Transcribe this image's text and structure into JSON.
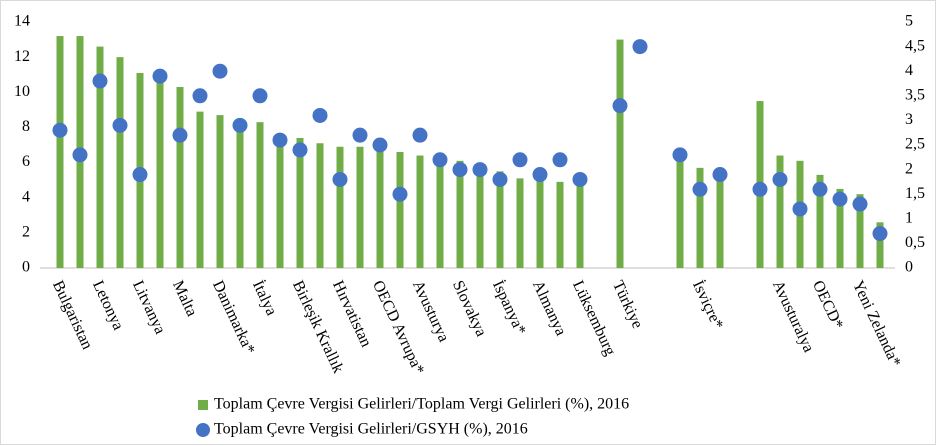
{
  "chart_data": {
    "type": "bar",
    "categories": [
      "Bulgaristan",
      null,
      "Letonya",
      null,
      "Litvanya",
      null,
      "Malta",
      null,
      "Danimarka*",
      null,
      "İtalya",
      null,
      "Birleşik Krallık",
      null,
      "Hırvatistan",
      null,
      "OECD Avrupa*",
      null,
      "Avusturya",
      null,
      "Slovakya",
      null,
      "İspanya*",
      null,
      "Almanya",
      null,
      "Lüksemburg",
      null,
      "Türkiye",
      null,
      null,
      null,
      "İsviçre*",
      null,
      null,
      null,
      "Avusturalya",
      null,
      "OECD*",
      null,
      "Yeni Zelanda*",
      null
    ],
    "series": [
      {
        "name": "Toplam Çevre Vergisi Gelirleri/Toplam Vergi Gelirleri (%), 2016",
        "color": "#70ad47",
        "values": [
          13.2,
          13.2,
          12.6,
          12.0,
          11.1,
          11.0,
          10.3,
          8.9,
          8.7,
          8.1,
          8.3,
          7.1,
          7.4,
          7.1,
          6.9,
          6.9,
          6.8,
          6.6,
          6.4,
          6.3,
          6.1,
          5.7,
          5.5,
          5.1,
          5.1,
          4.9,
          4.8,
          null,
          13.0,
          null,
          null,
          6.3,
          5.7,
          5.5,
          null,
          9.5,
          6.4,
          6.1,
          5.3,
          4.5,
          4.2,
          2.6
        ]
      },
      {
        "name": "Toplam Çevre Vergisi Gelirleri/GSYH (%), 2016",
        "color": "#4472c4",
        "axis": "y2",
        "values": [
          2.8,
          2.3,
          3.8,
          2.9,
          1.9,
          3.9,
          2.7,
          3.5,
          4.0,
          2.9,
          3.5,
          2.6,
          2.4,
          3.1,
          1.8,
          2.7,
          2.5,
          1.5,
          2.7,
          2.2,
          2.0,
          2.0,
          1.8,
          2.2,
          1.9,
          2.2,
          1.8,
          null,
          3.3,
          4.5,
          null,
          2.3,
          1.6,
          1.9,
          null,
          1.6,
          1.8,
          1.2,
          1.6,
          1.4,
          1.3,
          0.7
        ]
      }
    ],
    "ylim": [
      0,
      14
    ],
    "yticks": [
      0,
      2,
      4,
      6,
      8,
      10,
      12,
      14
    ],
    "y2lim": [
      0,
      5
    ],
    "y2ticks": [
      0,
      {
        "value": 0.5,
        "label": "0,5"
      },
      1,
      {
        "value": 1.5,
        "label": "1,5"
      },
      2,
      {
        "value": 2.5,
        "label": "2,5"
      },
      3,
      {
        "value": 3.5,
        "label": "3,5"
      },
      4,
      {
        "value": 4.5,
        "label": "4,5"
      },
      5
    ],
    "grid": false
  }
}
